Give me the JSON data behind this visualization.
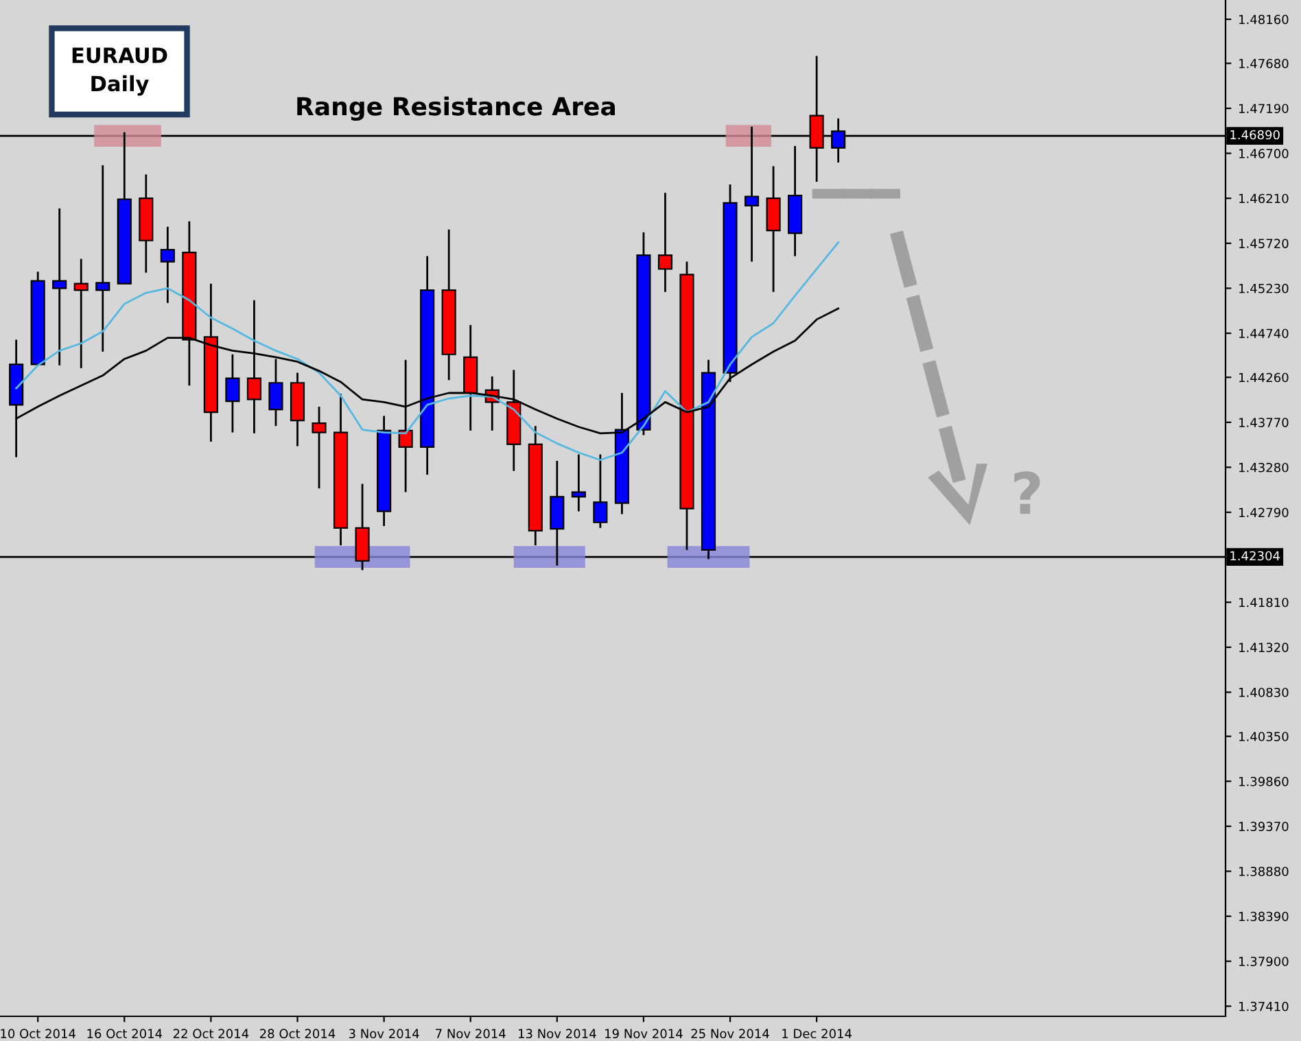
{
  "chart_data": {
    "type": "candlestick",
    "title": "EURAUD",
    "subtitle": "Daily",
    "categories": [
      null,
      "10 Oct 2014",
      null,
      null,
      null,
      "16 Oct 2014",
      null,
      null,
      null,
      "22 Oct 2014",
      null,
      null,
      null,
      "28 Oct 2014",
      null,
      null,
      null,
      "3 Nov 2014",
      null,
      null,
      null,
      "7 Nov 2014",
      null,
      null,
      null,
      "13 Nov 2014",
      null,
      null,
      null,
      "19 Nov 2014",
      null,
      null,
      null,
      "25 Nov 2014",
      null,
      null,
      null,
      "1 Dec 2014",
      null
    ],
    "ohlc": [
      [
        1.4396,
        1.4467,
        1.4339,
        1.444
      ],
      [
        1.444,
        1.4541,
        1.4439,
        1.4531
      ],
      [
        1.4523,
        1.461,
        1.4439,
        1.4531
      ],
      [
        1.4528,
        1.4555,
        1.4436,
        1.4521
      ],
      [
        1.4521,
        1.4657,
        1.4454,
        1.4529
      ],
      [
        1.4528,
        1.4693,
        1.4528,
        1.462
      ],
      [
        1.4621,
        1.4647,
        1.454,
        1.4575
      ],
      [
        1.4552,
        1.459,
        1.4507,
        1.4565
      ],
      [
        1.4562,
        1.4596,
        1.4417,
        1.4467
      ],
      [
        1.447,
        1.4528,
        1.4356,
        1.4388
      ],
      [
        1.44,
        1.4451,
        1.4366,
        1.4425
      ],
      [
        1.4425,
        1.451,
        1.4365,
        1.4402
      ],
      [
        1.4391,
        1.4446,
        1.4373,
        1.442
      ],
      [
        1.442,
        1.4431,
        1.4351,
        1.4379
      ],
      [
        1.4376,
        1.4394,
        1.4305,
        1.4366
      ],
      [
        1.4366,
        1.4408,
        1.4243,
        1.4262
      ],
      [
        1.4262,
        1.431,
        1.4216,
        1.4226
      ],
      [
        1.428,
        1.4384,
        1.4264,
        1.4368
      ],
      [
        1.4368,
        1.4445,
        1.4301,
        1.435
      ],
      [
        1.435,
        1.4558,
        1.432,
        1.4521
      ],
      [
        1.4521,
        1.4587,
        1.4423,
        1.4451
      ],
      [
        1.4448,
        1.4483,
        1.4368,
        1.4409
      ],
      [
        1.4412,
        1.4427,
        1.4368,
        1.4399
      ],
      [
        1.4399,
        1.4434,
        1.4324,
        1.4353
      ],
      [
        1.4353,
        1.4373,
        1.4243,
        1.4259
      ],
      [
        1.4261,
        1.4335,
        1.4221,
        1.4296
      ],
      [
        1.4296,
        1.4342,
        1.428,
        1.4301
      ],
      [
        1.4268,
        1.4342,
        1.4262,
        1.429
      ],
      [
        1.4289,
        1.4409,
        1.4277,
        1.4369
      ],
      [
        1.4369,
        1.4584,
        1.4363,
        1.4559
      ],
      [
        1.4559,
        1.4627,
        1.4519,
        1.4544
      ],
      [
        1.4538,
        1.4552,
        1.4238,
        1.4283
      ],
      [
        1.4238,
        1.4445,
        1.4228,
        1.4431
      ],
      [
        1.4431,
        1.4636,
        1.4421,
        1.4616
      ],
      [
        1.4613,
        1.4699,
        1.4552,
        1.4623
      ],
      [
        1.4621,
        1.4656,
        1.4519,
        1.4586
      ],
      [
        1.4583,
        1.4678,
        1.4558,
        1.4624
      ],
      [
        1.4711,
        1.4776,
        1.4639,
        1.4676
      ],
      [
        1.4676,
        1.4708,
        1.466,
        1.4694
      ]
    ],
    "colors": [
      "#0000ff",
      "#0000ff",
      "#0000ff",
      "#ff0000",
      "#0000ff",
      "#0000ff",
      "#ff0000",
      "#0000ff",
      "#ff0000",
      "#ff0000",
      "#0000ff",
      "#ff0000",
      "#0000ff",
      "#ff0000",
      "#ff0000",
      "#ff0000",
      "#ff0000",
      "#0000ff",
      "#ff0000",
      "#0000ff",
      "#ff0000",
      "#ff0000",
      "#ff0000",
      "#ff0000",
      "#ff0000",
      "#0000ff",
      "#0000ff",
      "#0000ff",
      "#0000ff",
      "#0000ff",
      "#ff0000",
      "#ff0000",
      "#0000ff",
      "#0000ff",
      "#0000ff",
      "#ff0000",
      "#0000ff",
      "#ff0000",
      "#0000ff"
    ],
    "series": [
      {
        "type": "line",
        "color": "#55b8e0",
        "values": [
          1.4414,
          1.4439,
          1.4455,
          1.4463,
          1.4476,
          1.4506,
          1.4518,
          1.4523,
          1.451,
          1.4491,
          1.4479,
          1.4466,
          1.4455,
          1.4446,
          1.4431,
          1.4406,
          1.4369,
          1.4366,
          1.4365,
          1.4396,
          1.4403,
          1.4406,
          1.4405,
          1.4391,
          1.4366,
          1.4354,
          1.4344,
          1.4336,
          1.4344,
          1.4373,
          1.4411,
          1.4388,
          1.4399,
          1.444,
          1.447,
          1.4485,
          1.4515,
          1.4544,
          1.4573
        ]
      },
      {
        "type": "line",
        "color": "#000000",
        "values": [
          1.4381,
          1.4394,
          1.4406,
          1.4417,
          1.4428,
          1.4446,
          1.4455,
          1.4469,
          1.4469,
          1.4461,
          1.4455,
          1.4452,
          1.4448,
          1.4443,
          1.4433,
          1.4421,
          1.4402,
          1.4399,
          1.4394,
          1.4403,
          1.4409,
          1.4409,
          1.4406,
          1.4402,
          1.4391,
          1.4381,
          1.4372,
          1.4365,
          1.4366,
          1.4381,
          1.4399,
          1.4388,
          1.4394,
          1.4425,
          1.444,
          1.4454,
          1.4466,
          1.4489,
          1.4501
        ]
      }
    ],
    "ylim": [
      1.373,
      1.4837
    ],
    "yticks": [
      {
        "value": 1.4816,
        "label": "1.48160"
      },
      {
        "value": 1.4768,
        "label": "1.47680"
      },
      {
        "value": 1.4719,
        "label": "1.47190"
      },
      {
        "value": 1.467,
        "label": "1.46700"
      },
      {
        "value": 1.4621,
        "label": "1.46210"
      },
      {
        "value": 1.4572,
        "label": "1.45720"
      },
      {
        "value": 1.4523,
        "label": "1.45230"
      },
      {
        "value": 1.4474,
        "label": "1.44740"
      },
      {
        "value": 1.4426,
        "label": "1.44260"
      },
      {
        "value": 1.4377,
        "label": "1.43770"
      },
      {
        "value": 1.4328,
        "label": "1.43280"
      },
      {
        "value": 1.4279,
        "label": "1.42790"
      },
      {
        "value": 1.4181,
        "label": "1.41810"
      },
      {
        "value": 1.4132,
        "label": "1.41320"
      },
      {
        "value": 1.4083,
        "label": "1.40830"
      },
      {
        "value": 1.4035,
        "label": "1.40350"
      },
      {
        "value": 1.3986,
        "label": "1.39860"
      },
      {
        "value": 1.3937,
        "label": "1.39370"
      },
      {
        "value": 1.3888,
        "label": "1.38880"
      },
      {
        "value": 1.3839,
        "label": "1.38390"
      },
      {
        "value": 1.379,
        "label": "1.37900"
      },
      {
        "value": 1.3741,
        "label": "1.37410"
      }
    ],
    "ref_lines": [
      {
        "axis": "y",
        "value": 1.4689,
        "label": "1.46890",
        "color": "#000000"
      },
      {
        "axis": "y",
        "value": 1.42304,
        "label": "1.42304",
        "color": "#000000"
      }
    ],
    "annotations": [
      {
        "text": "Range Resistance Area",
        "y": 1.4689
      },
      "?"
    ],
    "grid": false
  }
}
